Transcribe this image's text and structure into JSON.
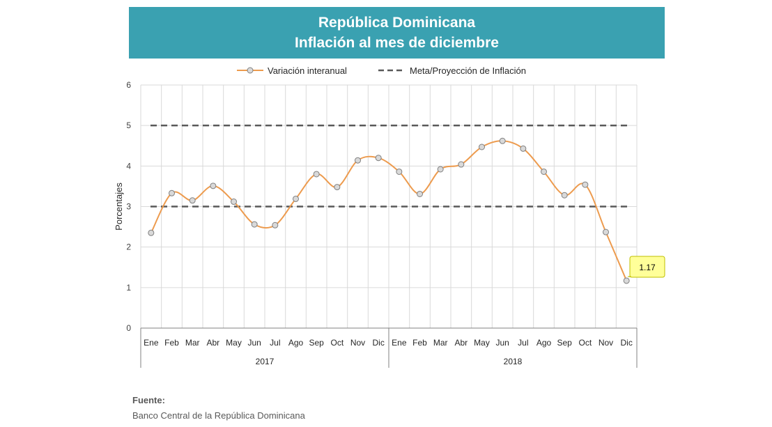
{
  "header": {
    "title_line1": "República Dominicana",
    "title_line2": "Inflación al mes de diciembre"
  },
  "source": {
    "heading": "Fuente:",
    "text": "Banco Central de la República Dominicana"
  },
  "chart_data": {
    "type": "line",
    "ylabel": "Porcentajes",
    "ylim": [
      0,
      6
    ],
    "yticks": [
      0,
      1,
      2,
      3,
      4,
      5,
      6
    ],
    "grid": true,
    "legend_position": "top",
    "categories": [
      "Ene",
      "Feb",
      "Mar",
      "Abr",
      "May",
      "Jun",
      "Jul",
      "Ago",
      "Sep",
      "Oct",
      "Nov",
      "Dic",
      "Ene",
      "Feb",
      "Mar",
      "Abr",
      "May",
      "Jun",
      "Jul",
      "Ago",
      "Sep",
      "Oct",
      "Nov",
      "Dic"
    ],
    "year_groups": [
      {
        "label": "2017",
        "count": 12
      },
      {
        "label": "2018",
        "count": 12
      }
    ],
    "series": [
      {
        "name": "Variación interanual",
        "style": "smooth-line-markers",
        "color": "#ed9b4e",
        "values": [
          2.35,
          3.33,
          3.15,
          3.51,
          3.12,
          2.56,
          2.54,
          3.19,
          3.8,
          3.48,
          4.14,
          4.2,
          3.86,
          3.31,
          3.92,
          4.04,
          4.47,
          4.62,
          4.43,
          3.86,
          3.28,
          3.54,
          2.37,
          1.17
        ]
      },
      {
        "name": "Meta/Proyección de Inflación",
        "style": "dashed-band",
        "color": "#595959",
        "lower": 3,
        "upper": 5
      }
    ],
    "annotations": [
      {
        "text": "1.17",
        "index": 23,
        "value": 1.17,
        "background": "#ffff99"
      }
    ]
  }
}
